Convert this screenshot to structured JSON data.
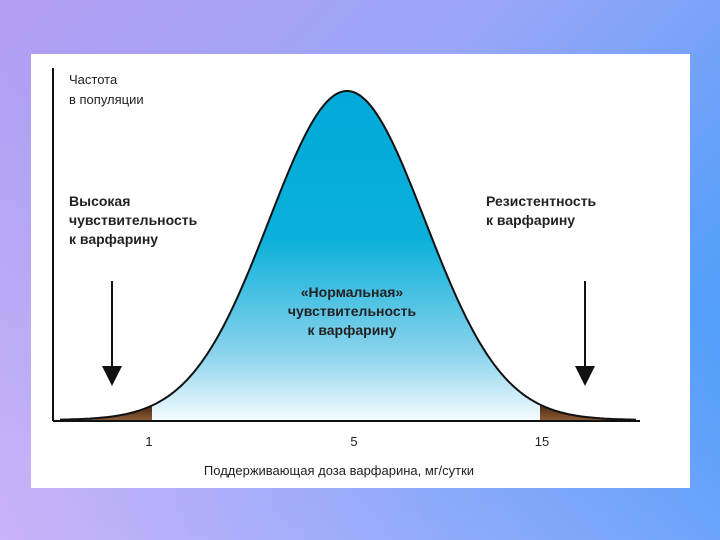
{
  "chart_data": {
    "type": "area",
    "ylabel": [
      "Частота",
      "в популяции"
    ],
    "xlabel": "Поддерживающая доза варфарина, мг/сутки",
    "x_ticks": [
      {
        "value": 1,
        "label": "1"
      },
      {
        "value": 5,
        "label": "5"
      },
      {
        "value": 15,
        "label": "15"
      }
    ],
    "regions": [
      {
        "name": "high-sensitivity",
        "lines": [
          "Высокая",
          "чувствительность",
          "к варфарину"
        ],
        "color": "#5a3620"
      },
      {
        "name": "normal",
        "lines": [
          "«Нормальная»",
          "чувствительность",
          "к варфарину"
        ],
        "color": "#00a7d6"
      },
      {
        "name": "resistance",
        "lines": [
          "Резистентность",
          "к варфарину"
        ],
        "color": "#5a3620"
      }
    ]
  }
}
